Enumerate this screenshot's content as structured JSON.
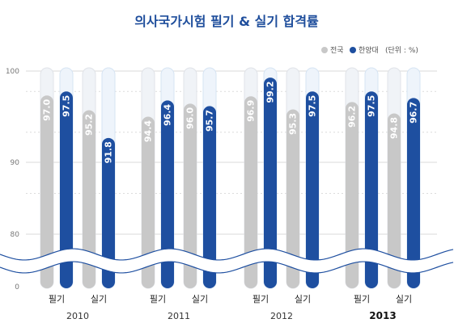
{
  "chart_data": {
    "type": "bar",
    "title": "의사국가시험 필기 & 실기 합격률",
    "legend": {
      "placement": "top-right",
      "unit_note": "(단위 : %)"
    },
    "series": [
      {
        "name": "전국",
        "color": "#c8c8c8"
      },
      {
        "name": "한양대",
        "color": "#1e4fa0"
      }
    ],
    "years": [
      "2010",
      "2011",
      "2012",
      "2013"
    ],
    "highlight_year": "2013",
    "categories": [
      "필기",
      "실기"
    ],
    "groups": [
      {
        "year": "2010",
        "category": "필기",
        "values": [
          97.0,
          97.5
        ]
      },
      {
        "year": "2010",
        "category": "실기",
        "values": [
          95.2,
          91.8
        ]
      },
      {
        "year": "2011",
        "category": "필기",
        "values": [
          94.4,
          96.4
        ]
      },
      {
        "year": "2011",
        "category": "실기",
        "values": [
          96.0,
          95.7
        ]
      },
      {
        "year": "2012",
        "category": "필기",
        "values": [
          96.9,
          99.2
        ]
      },
      {
        "year": "2012",
        "category": "실기",
        "values": [
          95.3,
          97.5
        ]
      },
      {
        "year": "2013",
        "category": "필기",
        "values": [
          96.2,
          97.5
        ]
      },
      {
        "year": "2013",
        "category": "실기",
        "values": [
          94.8,
          96.7
        ]
      }
    ],
    "y_ticks": [
      100,
      90,
      80,
      0
    ],
    "ylim": [
      80,
      100
    ],
    "axis_break": true,
    "grid": true
  }
}
